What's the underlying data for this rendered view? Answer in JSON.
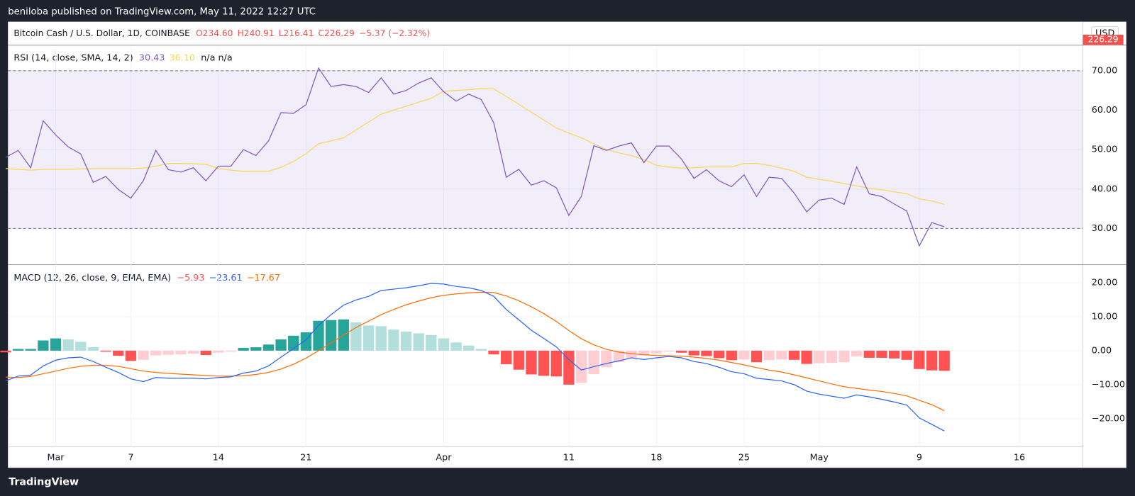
{
  "header": {
    "text": "beniloba published on TradingView.com, May 11, 2022 12:27 UTC"
  },
  "footer": {
    "logo": "TradingView"
  },
  "price": {
    "title": "Bitcoin Cash / U.S. Dollar, 1D, COINBASE",
    "ohlc": [
      "O234.60",
      "H240.91",
      "L216.41",
      "C226.29",
      "−5.37 (−2.32%)"
    ],
    "last_price": "226.29",
    "currency": "USD"
  },
  "chart_data": [
    {
      "type": "line",
      "title": "RSI (14, close, SMA, 14, 2)",
      "ylim": [
        21.0,
        76.4
      ],
      "yticks": [
        {
          "value": 70,
          "label": "70.00"
        },
        {
          "value": 60,
          "label": "60.00"
        },
        {
          "value": 50,
          "label": "50.00"
        },
        {
          "value": 40,
          "label": "40.00"
        },
        {
          "value": 30,
          "label": "30.00"
        }
      ],
      "band": [
        30,
        70
      ],
      "band_color": "#7e57c2",
      "series": [
        {
          "color": "#7e57c2",
          "legend_value": "30.43",
          "values": [
            48,
            49.8,
            45.4,
            57.3,
            53.7,
            50.7,
            48.9,
            41.7,
            43.2,
            39.9,
            37.7,
            42.1,
            49.8,
            44.9,
            44.3,
            45.4,
            42.1,
            45.8,
            45.8,
            50,
            48.5,
            52.2,
            59.4,
            59.2,
            61.4,
            70.7,
            66,
            66.5,
            66,
            64.5,
            68.2,
            64.1,
            65,
            66.9,
            68.2,
            64.7,
            62.3,
            64.1,
            62.7,
            56.8,
            43,
            45,
            41,
            42.1,
            40.3,
            33.3,
            38.1,
            51,
            49.8,
            50.9,
            51.7,
            46.7,
            50.9,
            50.9,
            47.6,
            42.7,
            44.9,
            42.1,
            40.6,
            43.6,
            38.1,
            43,
            42.7,
            39,
            34.2,
            37.2,
            37.7,
            36.1,
            45.6,
            38.8,
            38.1,
            36.2,
            34.4,
            25.6,
            31.5,
            30.43,
            null,
            null,
            null,
            null,
            null,
            null,
            null,
            null,
            null,
            null,
            null
          ]
        },
        {
          "color": "#f7d65a",
          "legend_value": "36.10",
          "values": [
            45.2,
            45,
            44.8,
            45,
            45,
            45,
            45.1,
            45.2,
            45.2,
            45.2,
            45.2,
            45.3,
            45.8,
            46.5,
            46.5,
            46.4,
            46.3,
            45.2,
            44.8,
            44.5,
            44.5,
            44.5,
            45.5,
            47,
            49,
            51.5,
            52.2,
            53,
            55,
            57,
            59,
            60,
            61,
            62,
            63,
            64.8,
            65,
            65.2,
            65.5,
            65.4,
            63.5,
            61.5,
            59.5,
            57.5,
            55.5,
            54.2,
            53,
            51.5,
            50,
            49.2,
            48.5,
            47.5,
            46,
            45.6,
            45.3,
            45.4,
            45.6,
            45.6,
            45.6,
            46.5,
            46.5,
            46,
            45.3,
            44.5,
            43,
            42.5,
            42,
            41.4,
            40.8,
            40.2,
            39.8,
            39.3,
            38.8,
            37.5,
            37,
            36.1,
            null,
            null,
            null,
            null,
            null,
            null,
            null,
            null,
            null,
            null,
            null
          ]
        }
      ],
      "legend_extra": "n/a  n/a"
    },
    {
      "type": "combo",
      "title": "MACD (12, 26, close, 9, EMA, EMA)",
      "categories": [
        null,
        null,
        null,
        null,
        "Mar",
        null,
        null,
        null,
        null,
        null,
        "7",
        null,
        null,
        null,
        null,
        null,
        null,
        "14",
        null,
        null,
        null,
        null,
        null,
        null,
        "21",
        null,
        null,
        null,
        null,
        null,
        null,
        null,
        null,
        null,
        null,
        "Apr",
        null,
        null,
        null,
        null,
        null,
        null,
        null,
        null,
        null,
        "11",
        null,
        null,
        null,
        null,
        null,
        null,
        "18",
        null,
        null,
        null,
        null,
        null,
        null,
        "25",
        null,
        null,
        null,
        null,
        null,
        "May",
        null,
        null,
        null,
        null,
        null,
        null,
        null,
        "9",
        null,
        null,
        null,
        null,
        null,
        null,
        null,
        "16",
        null,
        null,
        null,
        null,
        null,
        null
      ],
      "ylim": [
        -28.3,
        25.1
      ],
      "yticks": [
        {
          "value": 20,
          "label": "20.00"
        },
        {
          "value": 10,
          "label": "10.00"
        },
        {
          "value": 0,
          "label": "0.00"
        },
        {
          "value": -10,
          "label": "−10.00"
        },
        {
          "value": -20,
          "label": "−20.00"
        }
      ],
      "histogram": {
        "legend_value": "−5.93",
        "legend_color": "#ff5252",
        "colors": {
          "grow_above": "#26a69a",
          "fall_above": "#b2dfdb",
          "grow_below": "#ffcdd2",
          "fall_below": "#ff5252"
        },
        "values": [
          -0.5,
          0.5,
          0.5,
          3.0,
          3.6,
          3.3,
          2.6,
          1.0,
          -0.3,
          -1.5,
          -3.0,
          -2.7,
          -1.4,
          -1.2,
          -1.1,
          -0.9,
          -1.3,
          -0.6,
          -0.3,
          0.8,
          1.0,
          1.8,
          3.3,
          4.4,
          5.4,
          8.8,
          9.0,
          9.2,
          8.3,
          7.4,
          7.2,
          6.2,
          5.6,
          5.1,
          4.6,
          3.6,
          2.4,
          1.5,
          0.5,
          -1.1,
          -4.0,
          -5.6,
          -7.0,
          -7.4,
          -7.6,
          -10.0,
          -9.5,
          -6.9,
          -4.9,
          -3.4,
          -2.2,
          -1.4,
          -0.8,
          -0.3,
          -0.6,
          -1.4,
          -1.6,
          -2.2,
          -2.8,
          -2.6,
          -3.4,
          -2.8,
          -2.6,
          -2.7,
          -3.9,
          -3.7,
          -3.6,
          -3.4,
          -1.7,
          -2.1,
          -2.1,
          -2.3,
          -2.7,
          -5.4,
          -5.8,
          -5.93,
          null,
          null,
          null,
          null,
          null,
          null,
          null,
          null,
          null,
          null,
          null
        ]
      },
      "macd": {
        "color": "#2962ff",
        "legend_value": "−23.61",
        "values": [
          -8.9,
          -7.5,
          -7.2,
          -4.5,
          -2.8,
          -2.1,
          -1.9,
          -3.2,
          -4.9,
          -6.4,
          -8.3,
          -9.1,
          -7.9,
          -8.1,
          -8.1,
          -8.1,
          -8.3,
          -7.9,
          -7.7,
          -6.6,
          -6,
          -4.5,
          -1.9,
          0.6,
          3.2,
          7.4,
          10.6,
          13.4,
          14.9,
          16,
          17.7,
          18.1,
          18.5,
          19.1,
          19.8,
          19.6,
          18.9,
          18.5,
          17.7,
          16,
          12.1,
          9.1,
          6,
          3.6,
          1.1,
          -2.6,
          -5.7,
          -4.7,
          -3.8,
          -3,
          -2.1,
          -2.6,
          -2.1,
          -1.7,
          -2.1,
          -3.2,
          -3.8,
          -4.9,
          -6.2,
          -6.8,
          -8.1,
          -8.5,
          -8.9,
          -10,
          -11.9,
          -12.8,
          -13.4,
          -14,
          -13,
          -13.6,
          -14.3,
          -15.1,
          -16,
          -19.8,
          -21.7,
          -23.61,
          null,
          null,
          null,
          null,
          null,
          null,
          null,
          null,
          null,
          null,
          null
        ]
      },
      "signal": {
        "color": "#ff6d00",
        "legend_value": "−17.67",
        "values": [
          -7.8,
          -7.9,
          -7.6,
          -6.8,
          -6.0,
          -5.2,
          -4.6,
          -4.3,
          -4.3,
          -4.6,
          -5.3,
          -6.0,
          -6.4,
          -6.7,
          -6.9,
          -7.1,
          -7.3,
          -7.5,
          -7.5,
          -7.4,
          -7.0,
          -6.4,
          -5.4,
          -4.0,
          -2.2,
          0.0,
          2.3,
          4.6,
          6.8,
          8.7,
          10.6,
          12.1,
          13.5,
          14.6,
          15.6,
          16.3,
          16.7,
          17.0,
          17.2,
          17.1,
          16.1,
          14.7,
          12.9,
          10.9,
          8.6,
          5.9,
          3.5,
          1.7,
          0.4,
          -0.4,
          -0.9,
          -1.2,
          -1.4,
          -1.5,
          -1.6,
          -1.9,
          -2.3,
          -2.8,
          -3.5,
          -4.2,
          -5.0,
          -5.7,
          -6.3,
          -7.1,
          -8.0,
          -8.9,
          -9.8,
          -10.6,
          -11.1,
          -11.6,
          -12.0,
          -12.6,
          -13.3,
          -14.6,
          -15.9,
          -17.67,
          null,
          null,
          null,
          null,
          null,
          null,
          null,
          null,
          null,
          null,
          null
        ]
      }
    }
  ]
}
